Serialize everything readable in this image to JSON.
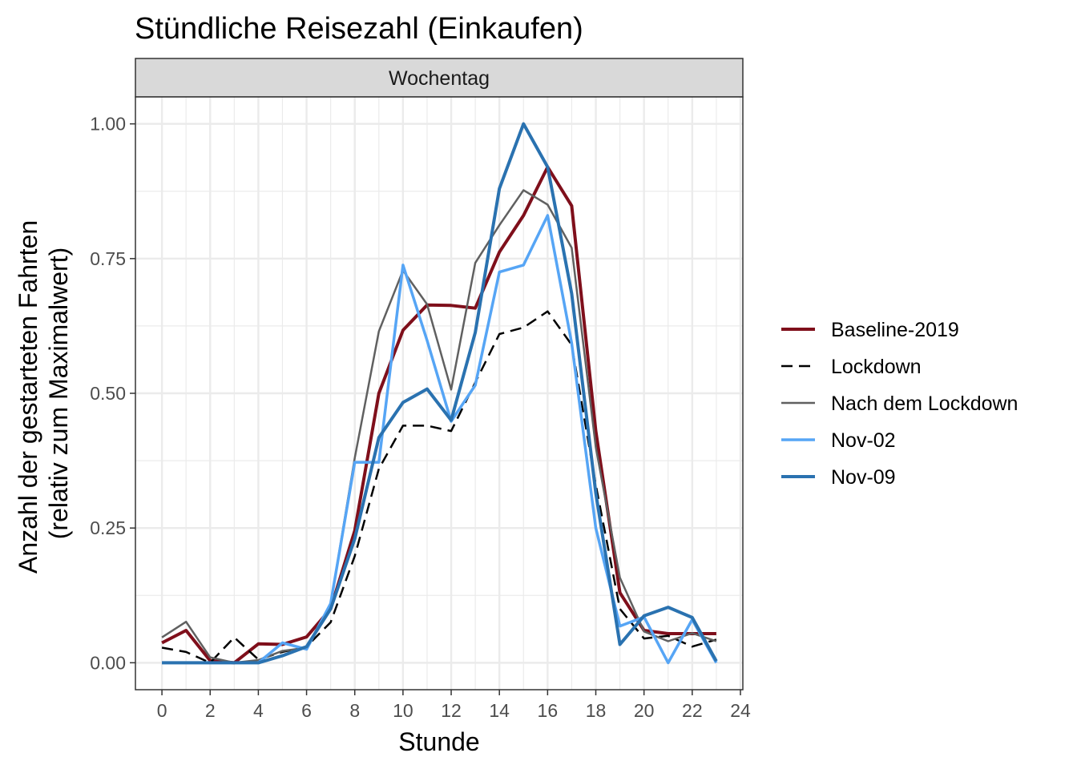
{
  "chart_data": {
    "type": "line",
    "title": "Stündliche Reisezahl (Einkaufen)",
    "facet": "Wochentag",
    "xlabel": "Stunde",
    "ylabel": [
      "Anzahl der gestarteten Fahrten",
      "(relativ zum Maximalwert)"
    ],
    "xlim": [
      -1.1,
      24.1
    ],
    "ylim": [
      -0.05,
      1.05
    ],
    "xticks": [
      0,
      2,
      4,
      6,
      8,
      10,
      12,
      14,
      16,
      18,
      20,
      22,
      24
    ],
    "xtick_labels": [
      "0",
      "2",
      "4",
      "6",
      "8",
      "10",
      "12",
      "14",
      "16",
      "18",
      "20",
      "22",
      "24"
    ],
    "yticks": [
      0,
      0.25,
      0.5,
      0.75,
      1.0
    ],
    "ytick_labels": [
      "0.00",
      "0.25",
      "0.50",
      "0.75",
      "1.00"
    ],
    "grid": true,
    "legend_position": "right",
    "x": [
      0,
      1,
      2,
      3,
      4,
      5,
      6,
      7,
      8,
      9,
      10,
      11,
      12,
      13,
      14,
      15,
      16,
      17,
      18,
      19,
      20,
      21,
      22,
      23
    ],
    "series": [
      {
        "name": "Baseline-2019",
        "color": "#7f0f1b",
        "width": 4,
        "dash": "",
        "values": [
          0.037,
          0.06,
          0.004,
          0.0,
          0.035,
          0.034,
          0.048,
          0.1,
          0.245,
          0.5,
          0.617,
          0.664,
          0.663,
          0.658,
          0.762,
          0.83,
          0.92,
          0.848,
          0.43,
          0.13,
          0.06,
          0.054,
          0.054,
          0.054
        ]
      },
      {
        "name": "Lockdown",
        "color": "#000000",
        "width": 2.5,
        "dash": "14,8",
        "values": [
          0.028,
          0.02,
          0.0,
          0.047,
          0.006,
          0.02,
          0.03,
          0.075,
          0.198,
          0.36,
          0.44,
          0.44,
          0.43,
          0.52,
          0.61,
          0.622,
          0.652,
          0.59,
          0.33,
          0.1,
          0.045,
          0.05,
          0.03,
          0.043
        ]
      },
      {
        "name": "Nach dem Lockdown",
        "color": "#606060",
        "width": 2.5,
        "dash": "",
        "values": [
          0.047,
          0.076,
          0.01,
          0.0,
          0.005,
          0.022,
          0.028,
          0.11,
          0.38,
          0.615,
          0.728,
          0.665,
          0.507,
          0.742,
          0.812,
          0.877,
          0.85,
          0.77,
          0.4,
          0.158,
          0.058,
          0.04,
          0.055,
          0.04
        ]
      },
      {
        "name": "Nov-02",
        "color": "#56a5f5",
        "width": 3.5,
        "dash": "",
        "values": [
          0.0,
          0.0,
          0.0,
          0.0,
          0.0,
          0.037,
          0.025,
          0.11,
          0.372,
          0.372,
          0.738,
          0.598,
          0.448,
          0.515,
          0.725,
          0.738,
          0.83,
          0.593,
          0.25,
          0.068,
          0.085,
          0.0,
          0.08,
          0.0
        ]
      },
      {
        "name": "Nov-09",
        "color": "#2a72b0",
        "width": 4,
        "dash": "",
        "values": [
          0.0,
          0.0,
          0.0,
          0.0,
          0.0,
          0.013,
          0.03,
          0.1,
          0.23,
          0.418,
          0.483,
          0.508,
          0.45,
          0.613,
          0.88,
          1.0,
          0.92,
          0.685,
          0.315,
          0.034,
          0.087,
          0.103,
          0.084,
          0.003
        ]
      }
    ]
  }
}
